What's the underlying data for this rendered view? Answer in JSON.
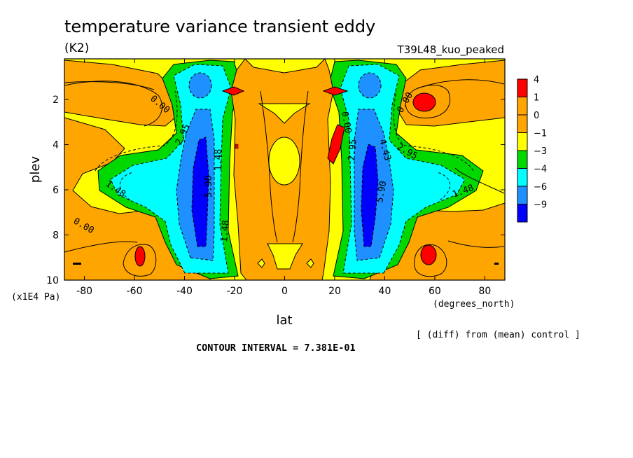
{
  "chart_data": {
    "type": "heatmap",
    "title": "temperature variance transient eddy",
    "units": "(K2)",
    "run_label": "T39L48_kuo_peaked",
    "xlabel": "lat",
    "x_units": "(degrees_north)",
    "ylabel": "plev",
    "y_units": "(x1E4 Pa)",
    "xlim": [
      -88,
      88
    ],
    "ylim": [
      10,
      0.2
    ],
    "x_ticks": [
      -80,
      -60,
      -40,
      -20,
      0,
      20,
      40,
      60,
      80
    ],
    "y_ticks": [
      2,
      4,
      6,
      8,
      10
    ],
    "colorbar": {
      "labels": [
        "4",
        "1",
        "0",
        "−1",
        "−3",
        "−4",
        "−6",
        "−9"
      ],
      "colors": [
        "#ff0000",
        "#ffa500",
        "#ffa500",
        "#ffff00",
        "#00d800",
        "#00ffff",
        "#1e90ff",
        "#0000ff"
      ]
    },
    "contour_labels": [
      "0.00",
      "0.00",
      "0.00",
      "0.00",
      "2.95",
      "2.95",
      "1.48",
      "1.48",
      "5.90",
      "5.90",
      "1.48",
      "4.43",
      "1.48",
      "2.95"
    ],
    "note": "[ (diff) from (mean) control ]",
    "contour_interval": "CONTOUR INTERVAL = 7.381E-01"
  }
}
